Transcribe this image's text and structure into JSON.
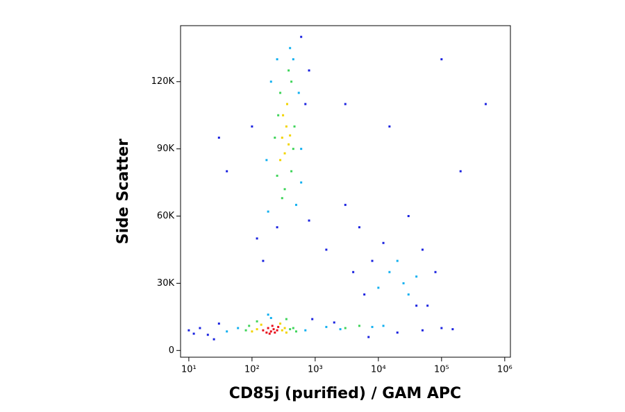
{
  "chart_data": {
    "type": "scatter",
    "x_label": "CD85j (purified) / GAM APC",
    "y_label": "Side Scatter",
    "x_log": true,
    "xlim": [
      7.4,
      1230000
    ],
    "xticks": [
      {
        "value": 10,
        "label": "10¹"
      },
      {
        "value": 100,
        "label": "10²"
      },
      {
        "value": 1000,
        "label": "10³"
      },
      {
        "value": 10000,
        "label": "10⁴"
      },
      {
        "value": 100000,
        "label": "10⁵"
      },
      {
        "value": 1000000,
        "label": "10⁶"
      }
    ],
    "ylim": [
      -3000,
      145000
    ],
    "yticks": [
      0,
      {
        "value": 30000,
        "label": "30K"
      },
      {
        "value": 60000,
        "label": "60K"
      },
      {
        "value": 90000,
        "label": "90K"
      },
      {
        "value": 120000,
        "label": "120K"
      }
    ],
    "series": [
      {
        "color": "#1a22e0",
        "x": [
          20,
          15,
          30,
          25,
          10,
          12,
          900,
          2000,
          7000,
          20000,
          50000,
          100000,
          150000,
          120,
          250,
          800,
          150,
          1500,
          600,
          800,
          100,
          700,
          40,
          30,
          3000,
          5000,
          8000,
          60000,
          80000,
          6000,
          50000,
          30000,
          15000,
          3000,
          100000,
          500000,
          200000,
          40000,
          4000,
          12000
        ],
        "values": [
          7000,
          10000,
          12000,
          5000,
          9000,
          7500,
          14000,
          12500,
          6000,
          8000,
          9000,
          10000,
          9500,
          50000,
          55000,
          58000,
          40000,
          45000,
          140000,
          125000,
          100000,
          110000,
          80000,
          95000,
          65000,
          55000,
          40000,
          20000,
          35000,
          25000,
          45000,
          60000,
          100000,
          110000,
          130000,
          110000,
          80000,
          20000,
          35000,
          48000
        ]
      },
      {
        "color": "#12b0f0",
        "x": [
          60,
          40,
          700,
          1500,
          2500,
          8000,
          12000,
          200,
          180,
          500,
          200,
          550,
          250,
          400,
          170,
          600,
          15000,
          25000,
          20000,
          30000,
          10000,
          40000,
          180,
          450,
          600
        ],
        "values": [
          10000,
          8500,
          9000,
          10500,
          9500,
          10500,
          11000,
          14500,
          62000,
          65000,
          120000,
          115000,
          130000,
          135000,
          85000,
          90000,
          35000,
          30000,
          40000,
          25000,
          28000,
          33000,
          16000,
          130000,
          75000
        ]
      },
      {
        "color": "#3fd45a",
        "x": [
          80,
          400,
          450,
          90,
          500,
          250,
          450,
          280,
          420,
          230,
          330,
          420,
          260,
          380,
          300,
          470,
          3000,
          5000,
          120,
          350
        ],
        "values": [
          9000,
          9500,
          10000,
          11000,
          8500,
          78000,
          90000,
          115000,
          120000,
          95000,
          72000,
          80000,
          105000,
          125000,
          68000,
          100000,
          10000,
          11000,
          13000,
          14000
        ]
      },
      {
        "color": "#f2d400",
        "x": [
          120,
          300,
          330,
          140,
          280,
          350,
          100,
          300,
          350,
          330,
          380,
          310,
          280,
          360,
          400
        ],
        "values": [
          9500,
          9000,
          10000,
          11500,
          12000,
          8000,
          8500,
          95000,
          100000,
          88000,
          92000,
          105000,
          85000,
          110000,
          96000
        ]
      },
      {
        "color": "#e8101c",
        "x": [
          150,
          180,
          200,
          220,
          250,
          170,
          210,
          260,
          190,
          230
        ],
        "values": [
          9000,
          10000,
          8500,
          9500,
          9000,
          8000,
          11000,
          10500,
          7500,
          8000
        ]
      }
    ]
  }
}
